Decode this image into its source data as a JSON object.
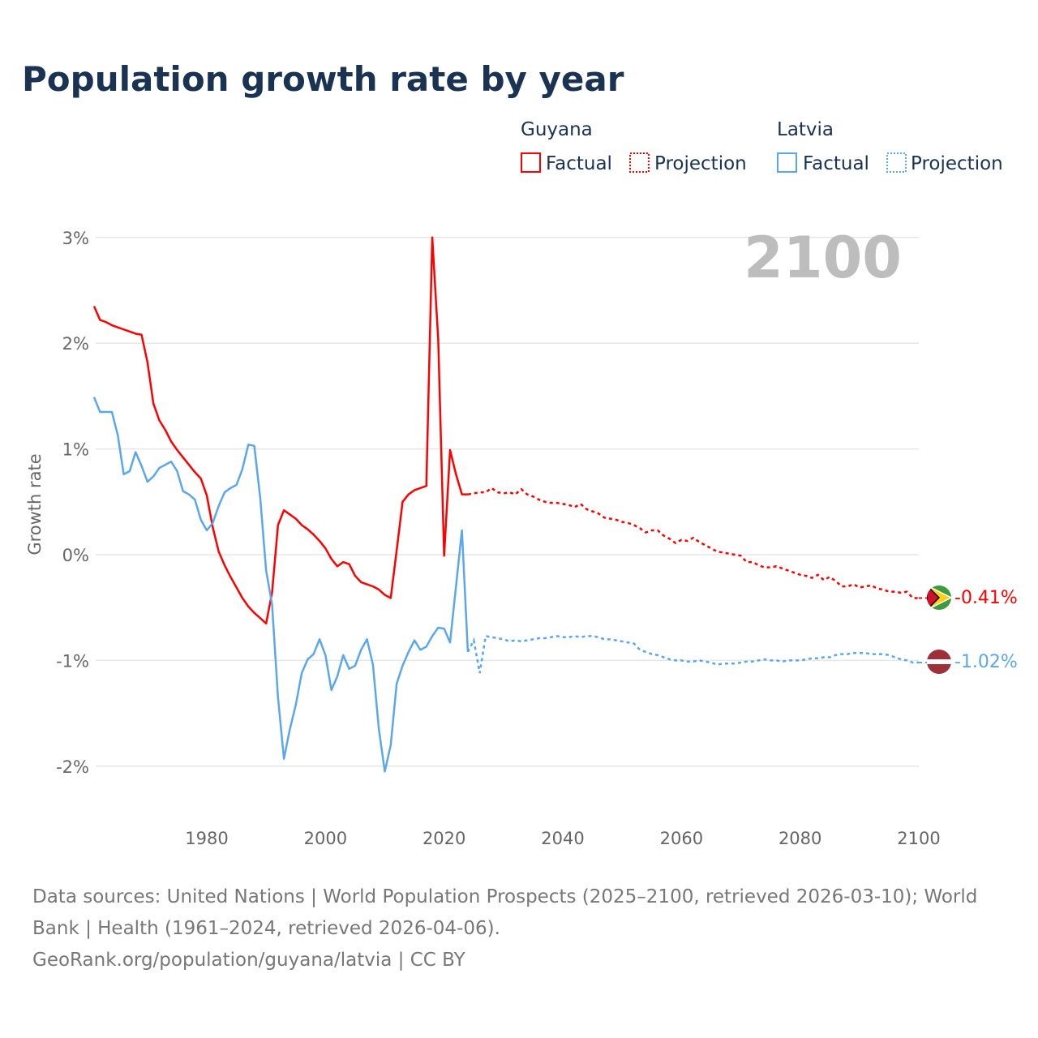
{
  "chart_data": {
    "type": "line",
    "title": "Population growth rate by year",
    "ylabel": "Growth rate",
    "xlabel": "",
    "xlim": [
      1961,
      2100
    ],
    "ylim": [
      -2.5,
      3.2
    ],
    "x_ticks": [
      "1980",
      "2000",
      "2020",
      "2040",
      "2060",
      "2080",
      "2100"
    ],
    "y_ticks": [
      {
        "value": 3,
        "label": "3%"
      },
      {
        "value": 2,
        "label": "2%"
      },
      {
        "value": 1,
        "label": "1%"
      },
      {
        "value": 0,
        "label": "0%"
      },
      {
        "value": -1,
        "label": "-1%"
      },
      {
        "value": -2,
        "label": "-2%"
      }
    ],
    "grid": true,
    "current_year": "2100",
    "legend": {
      "placement": "top-right",
      "groups": [
        {
          "country": "Guyana",
          "factual": "Factual",
          "projection": "Projection"
        },
        {
          "country": "Latvia",
          "factual": "Factual",
          "projection": "Projection"
        }
      ]
    },
    "series": [
      {
        "name": "Guyana",
        "color": "#ff0000",
        "end_label": "-0.41%",
        "factual_start": 1961,
        "factual": [
          2.35,
          2.22,
          2.2,
          2.17,
          2.15,
          2.13,
          2.11,
          2.09,
          2.08,
          1.82,
          1.43,
          1.27,
          1.18,
          1.07,
          0.99,
          0.92,
          0.85,
          0.78,
          0.72,
          0.56,
          0.26,
          0.03,
          -0.1,
          -0.21,
          -0.31,
          -0.41,
          -0.49,
          -0.55,
          -0.6,
          -0.65,
          -0.36,
          0.28,
          0.42,
          0.38,
          0.34,
          0.28,
          0.24,
          0.19,
          0.13,
          0.06,
          -0.04,
          -0.11,
          -0.07,
          -0.09,
          -0.2,
          -0.26,
          -0.28,
          -0.3,
          -0.33,
          -0.38,
          -0.41,
          0.04,
          0.5,
          0.57,
          0.61,
          0.63,
          0.65,
          3.0,
          2.04,
          -0.01,
          0.99,
          0.76,
          0.57,
          0.57
        ],
        "projection_start": 2025,
        "projection": [
          0.58,
          0.59,
          0.59,
          0.63,
          0.59,
          0.58,
          0.59,
          0.57,
          0.62,
          0.57,
          0.55,
          0.52,
          0.5,
          0.49,
          0.49,
          0.48,
          0.47,
          0.45,
          0.48,
          0.43,
          0.41,
          0.39,
          0.35,
          0.34,
          0.33,
          0.31,
          0.3,
          0.28,
          0.25,
          0.21,
          0.23,
          0.23,
          0.18,
          0.15,
          0.11,
          0.14,
          0.13,
          0.16,
          0.12,
          0.09,
          0.06,
          0.03,
          0.02,
          0.01,
          0.0,
          -0.01,
          -0.07,
          -0.07,
          -0.1,
          -0.12,
          -0.12,
          -0.11,
          -0.13,
          -0.15,
          -0.17,
          -0.19,
          -0.2,
          -0.22,
          -0.19,
          -0.24,
          -0.21,
          -0.25,
          -0.3,
          -0.3,
          -0.28,
          -0.31,
          -0.3,
          -0.29,
          -0.32,
          -0.33,
          -0.35,
          -0.35,
          -0.36,
          -0.35,
          -0.41,
          -0.41
        ]
      },
      {
        "name": "Latvia",
        "color": "#5ba7ec",
        "end_label": "-1.02%",
        "factual_start": 1961,
        "factual": [
          1.49,
          1.35,
          1.35,
          1.35,
          1.13,
          0.76,
          0.79,
          0.97,
          0.84,
          0.69,
          0.74,
          0.82,
          0.85,
          0.88,
          0.79,
          0.6,
          0.57,
          0.52,
          0.33,
          0.23,
          0.3,
          0.46,
          0.59,
          0.63,
          0.66,
          0.81,
          1.04,
          1.03,
          0.54,
          -0.15,
          -0.47,
          -1.35,
          -1.93,
          -1.65,
          -1.42,
          -1.12,
          -0.99,
          -0.94,
          -0.8,
          -0.95,
          -1.28,
          -1.15,
          -0.95,
          -1.08,
          -1.05,
          -0.9,
          -0.8,
          -1.04,
          -1.65,
          -2.05,
          -1.8,
          -1.22,
          -1.05,
          -0.92,
          -0.81,
          -0.9,
          -0.87,
          -0.77,
          -0.69,
          -0.7,
          -0.83,
          -0.3,
          0.23,
          -0.92
        ],
        "projection_start": 2025,
        "projection": [
          -0.81,
          -1.12,
          -0.77,
          -0.78,
          -0.79,
          -0.8,
          -0.82,
          -0.81,
          -0.82,
          -0.81,
          -0.8,
          -0.79,
          -0.79,
          -0.78,
          -0.77,
          -0.78,
          -0.78,
          -0.77,
          -0.78,
          -0.77,
          -0.77,
          -0.78,
          -0.8,
          -0.8,
          -0.81,
          -0.82,
          -0.83,
          -0.84,
          -0.9,
          -0.92,
          -0.94,
          -0.95,
          -0.97,
          -0.99,
          -1.0,
          -1.0,
          -1.01,
          -1.01,
          -1.0,
          -1.01,
          -1.02,
          -1.04,
          -1.03,
          -1.03,
          -1.03,
          -1.02,
          -1.01,
          -1.01,
          -1.0,
          -0.99,
          -1.0,
          -1.0,
          -1.01,
          -1.0,
          -1.0,
          -1.0,
          -0.99,
          -0.98,
          -0.98,
          -0.97,
          -0.97,
          -0.95,
          -0.94,
          -0.94,
          -0.93,
          -0.93,
          -0.93,
          -0.94,
          -0.94,
          -0.94,
          -0.95,
          -0.97,
          -0.99,
          -1.0,
          -1.02,
          -1.02
        ]
      }
    ],
    "footer": {
      "line1": "Data sources: United Nations | World Population Prospects (2025–2100, retrieved 2026-03-10); World",
      "line2": "Bank | Health (1961–2024, retrieved 2026-04-06).",
      "line3": "GeoRank.org/population/guyana/latvia | CC BY"
    }
  }
}
